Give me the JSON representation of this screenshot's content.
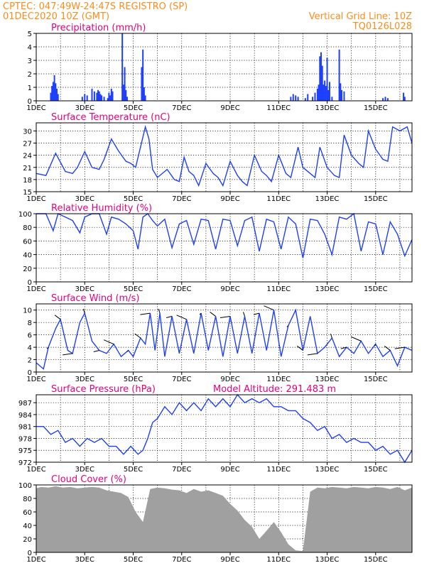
{
  "header": {
    "line1": "CPTEC:   047:49W-24:47S   REGISTRO (SP)",
    "line2": "01DEC2020 10Z (GMT)",
    "grid_note": "Vertical Grid Line: 10Z",
    "code": "TQ0126L028"
  },
  "colors": {
    "header": "#ff8c1a",
    "panel_title": "#e6007e",
    "series": "#1f3fff",
    "cloud": "#a0a0a0"
  },
  "chart_data": [
    {
      "type": "bar",
      "title": "Precipitation (mm/h)",
      "x_unit": "days from 01DEC 10Z",
      "xlim": [
        0,
        15.5
      ],
      "ylim": [
        0,
        5
      ],
      "yticks": [
        0,
        1,
        2,
        3,
        4,
        5
      ],
      "xticks": [
        "1DEC",
        "3DEC",
        "5DEC",
        "7DEC",
        "9DEC",
        "11DEC",
        "13DEC",
        "15DEC"
      ],
      "x": [
        0.6,
        0.65,
        0.7,
        0.75,
        0.8,
        0.85,
        0.9,
        1.9,
        2.0,
        2.1,
        2.3,
        2.4,
        2.5,
        2.55,
        2.6,
        2.65,
        2.7,
        2.8,
        2.95,
        3.0,
        3.05,
        3.1,
        3.15,
        3.55,
        3.6,
        3.65,
        3.7,
        3.75,
        4.35,
        4.4,
        4.45,
        4.5,
        10.5,
        10.6,
        10.7,
        10.8,
        11.1,
        11.2,
        11.4,
        11.5,
        11.6,
        11.65,
        11.7,
        11.75,
        11.8,
        11.85,
        11.9,
        11.95,
        12.0,
        12.05,
        12.1,
        12.2,
        12.5,
        12.55,
        12.6,
        12.7,
        14.3,
        14.4,
        14.5,
        15.15,
        15.2
      ],
      "values": [
        0.6,
        1.1,
        1.4,
        1.9,
        1.3,
        0.9,
        0.5,
        0.3,
        0.5,
        0.4,
        0.9,
        0.7,
        0.6,
        0.8,
        0.7,
        0.5,
        0.4,
        0.3,
        0.2,
        0.6,
        0.4,
        0.9,
        0.7,
        5.0,
        1.2,
        2.5,
        0.8,
        0.3,
        2.5,
        3.8,
        1.0,
        0.4,
        0.3,
        0.5,
        0.4,
        0.3,
        0.2,
        0.5,
        0.3,
        0.6,
        0.9,
        1.2,
        3.3,
        3.6,
        2.6,
        1.2,
        1.5,
        1.1,
        3.2,
        0.8,
        1.4,
        0.3,
        3.8,
        1.3,
        0.8,
        0.7,
        0.2,
        0.3,
        0.2,
        0.6,
        0.3
      ]
    },
    {
      "type": "line",
      "title": "Surface Temperature (nC)",
      "xlim": [
        0,
        15.5
      ],
      "ylim": [
        15,
        32
      ],
      "yticks": [
        15,
        18,
        21,
        24,
        27,
        30
      ],
      "xticks": [
        "1DEC",
        "3DEC",
        "5DEC",
        "7DEC",
        "9DEC",
        "11DEC",
        "13DEC",
        "15DEC"
      ],
      "x": [
        0,
        0.4,
        0.8,
        1.2,
        1.5,
        1.7,
        2.0,
        2.3,
        2.6,
        2.8,
        3.1,
        3.4,
        3.7,
        3.9,
        4.1,
        4.3,
        4.5,
        4.65,
        4.8,
        5.0,
        5.4,
        5.7,
        5.9,
        6.1,
        6.3,
        6.5,
        6.7,
        7.0,
        7.3,
        7.5,
        7.7,
        8.0,
        8.3,
        8.5,
        8.7,
        9.0,
        9.3,
        9.5,
        9.7,
        10.0,
        10.3,
        10.5,
        10.8,
        11.0,
        11.3,
        11.5,
        11.7,
        12.0,
        12.3,
        12.5,
        12.7,
        13.0,
        13.3,
        13.5,
        13.7,
        14.0,
        14.3,
        14.5,
        14.7,
        15.0,
        15.3,
        15.5
      ],
      "values": [
        19.5,
        19.0,
        24.5,
        20.0,
        19.5,
        21.0,
        24.9,
        21.0,
        20.5,
        23.0,
        28.0,
        25.0,
        22.5,
        22.0,
        21.0,
        26.0,
        31.0,
        28.0,
        20.5,
        18.5,
        20.5,
        18.0,
        17.5,
        23.5,
        20.0,
        19.0,
        16.5,
        22.0,
        19.5,
        18.5,
        16.5,
        22.5,
        19.0,
        17.5,
        16.5,
        24.0,
        20.0,
        19.0,
        17.5,
        24.0,
        19.5,
        18.5,
        26.0,
        21.0,
        19.5,
        18.5,
        26.0,
        21.0,
        19.0,
        18.5,
        29.0,
        24.0,
        22.0,
        21.0,
        30.0,
        25.5,
        23.0,
        22.5,
        31.0,
        30.0,
        31.0,
        27.0
      ]
    },
    {
      "type": "line",
      "title": "Relative Humidity (%)",
      "xlim": [
        0,
        15.5
      ],
      "ylim": [
        0,
        100
      ],
      "yticks": [
        0,
        20,
        40,
        60,
        80,
        100
      ],
      "xticks": [
        "1DEC",
        "3DEC",
        "5DEC",
        "7DEC",
        "9DEC",
        "11DEC",
        "13DEC",
        "15DEC"
      ],
      "x": [
        0,
        0.4,
        0.7,
        0.9,
        1.2,
        1.5,
        1.8,
        2.0,
        2.3,
        2.6,
        2.9,
        3.1,
        3.4,
        3.7,
        4.0,
        4.2,
        4.4,
        4.6,
        4.8,
        5.0,
        5.3,
        5.6,
        5.9,
        6.2,
        6.5,
        6.8,
        7.1,
        7.4,
        7.7,
        8.0,
        8.3,
        8.6,
        8.9,
        9.2,
        9.5,
        9.8,
        10.1,
        10.4,
        10.7,
        11.0,
        11.3,
        11.6,
        11.9,
        12.2,
        12.5,
        12.8,
        13.1,
        13.4,
        13.7,
        14.0,
        14.3,
        14.6,
        14.9,
        15.2,
        15.5
      ],
      "values": [
        100,
        100,
        75,
        100,
        95,
        90,
        72,
        95,
        100,
        100,
        70,
        95,
        92,
        85,
        75,
        48,
        95,
        100,
        90,
        82,
        92,
        50,
        85,
        90,
        55,
        92,
        90,
        48,
        92,
        90,
        53,
        90,
        95,
        45,
        92,
        88,
        48,
        95,
        85,
        35,
        92,
        90,
        70,
        40,
        95,
        92,
        100,
        45,
        88,
        85,
        40,
        88,
        70,
        38,
        62
      ]
    },
    {
      "type": "line",
      "title": "Surface Wind (m/s)",
      "xlim": [
        0,
        15.5
      ],
      "ylim": [
        0,
        11
      ],
      "yticks": [
        0,
        2,
        4,
        6,
        8,
        10
      ],
      "xticks": [
        "1DEC",
        "3DEC",
        "5DEC",
        "7DEC",
        "9DEC",
        "11DEC",
        "13DEC",
        "15DEC"
      ],
      "x": [
        0,
        0.3,
        0.5,
        0.8,
        1.0,
        1.3,
        1.5,
        1.8,
        2.0,
        2.3,
        2.6,
        2.9,
        3.2,
        3.5,
        3.8,
        4.0,
        4.3,
        4.5,
        4.7,
        4.9,
        5.1,
        5.3,
        5.6,
        5.9,
        6.2,
        6.5,
        6.8,
        7.1,
        7.4,
        7.7,
        8.0,
        8.3,
        8.6,
        8.9,
        9.2,
        9.5,
        9.8,
        10.1,
        10.4,
        10.7,
        11.0,
        11.3,
        11.6,
        11.9,
        12.2,
        12.5,
        12.8,
        13.1,
        13.4,
        13.7,
        14.0,
        14.3,
        14.6,
        14.9,
        15.2,
        15.5
      ],
      "values": [
        1.5,
        0.5,
        4.0,
        7.0,
        8.5,
        3.5,
        3.0,
        8.0,
        9.5,
        5.0,
        3.5,
        3.0,
        4.5,
        2.5,
        3.5,
        2.5,
        5.5,
        4.5,
        9.5,
        3.5,
        9.5,
        2.5,
        9.0,
        3.0,
        8.5,
        3.0,
        9.5,
        3.5,
        9.0,
        2.5,
        9.0,
        3.0,
        9.0,
        3.0,
        9.5,
        3.5,
        10.0,
        2.5,
        7.5,
        10.0,
        3.5,
        9.0,
        3.0,
        4.0,
        5.5,
        2.5,
        4.0,
        3.0,
        5.0,
        3.0,
        4.5,
        2.5,
        3.5,
        1.0,
        4.0,
        3.5
      ]
    },
    {
      "type": "line",
      "title": "Surface Pressure (hPa)",
      "annotation": "Model Altitude: 291.483 m",
      "xlim": [
        0,
        15.5
      ],
      "ylim": [
        972,
        989
      ],
      "yticks": [
        972,
        975,
        978,
        981,
        984,
        987
      ],
      "xticks": [
        "1DEC",
        "3DEC",
        "5DEC",
        "7DEC",
        "9DEC",
        "11DEC",
        "13DEC",
        "15DEC"
      ],
      "x": [
        0,
        0.3,
        0.6,
        0.9,
        1.2,
        1.5,
        1.8,
        2.1,
        2.4,
        2.7,
        3.0,
        3.3,
        3.6,
        3.9,
        4.2,
        4.4,
        4.6,
        4.8,
        5.0,
        5.3,
        5.6,
        5.9,
        6.2,
        6.5,
        6.8,
        7.1,
        7.4,
        7.7,
        8.0,
        8.3,
        8.6,
        8.9,
        9.2,
        9.5,
        9.8,
        10.1,
        10.4,
        10.7,
        11.0,
        11.3,
        11.6,
        11.9,
        12.2,
        12.5,
        12.8,
        13.1,
        13.4,
        13.7,
        14.0,
        14.3,
        14.6,
        14.9,
        15.2,
        15.5
      ],
      "values": [
        981,
        981,
        979,
        980,
        977,
        978,
        976,
        978,
        977,
        978,
        976,
        976,
        974,
        976,
        974,
        975,
        978,
        982,
        983,
        986,
        984,
        987,
        985,
        987,
        985,
        988,
        986,
        988,
        986,
        989,
        987,
        988,
        987,
        988,
        986,
        986,
        985,
        985,
        983,
        982,
        980,
        981,
        978,
        979,
        977,
        978,
        977,
        977,
        975,
        976,
        974,
        975,
        972,
        975
      ]
    },
    {
      "type": "area",
      "title": "Cloud Cover (%)",
      "xlim": [
        0,
        15.5
      ],
      "ylim": [
        0,
        100
      ],
      "yticks": [
        0,
        20,
        40,
        60,
        80,
        100
      ],
      "xticks": [
        "1DEC",
        "3DEC",
        "5DEC",
        "7DEC",
        "9DEC",
        "11DEC",
        "13DEC",
        "15DEC"
      ],
      "x": [
        0,
        0.2,
        0.5,
        0.8,
        1.1,
        1.4,
        1.7,
        2.0,
        2.3,
        2.6,
        2.9,
        3.2,
        3.5,
        3.8,
        4.1,
        4.4,
        4.7,
        5.0,
        5.3,
        5.6,
        5.9,
        6.2,
        6.5,
        6.8,
        7.1,
        7.4,
        7.7,
        8.0,
        8.3,
        8.6,
        8.9,
        9.2,
        9.5,
        9.8,
        10.1,
        10.4,
        10.7,
        11.0,
        11.3,
        11.6,
        11.9,
        12.2,
        12.5,
        12.8,
        13.1,
        13.4,
        13.7,
        14.0,
        14.3,
        14.6,
        14.9,
        15.2,
        15.5
      ],
      "values": [
        95,
        97,
        96,
        98,
        96,
        97,
        95,
        96,
        97,
        96,
        92,
        90,
        88,
        82,
        60,
        45,
        94,
        96,
        95,
        93,
        92,
        88,
        94,
        90,
        92,
        88,
        84,
        72,
        62,
        48,
        38,
        20,
        32,
        45,
        30,
        12,
        3,
        2,
        90,
        96,
        95,
        97,
        96,
        95,
        97,
        96,
        95,
        97,
        96,
        94,
        97,
        92,
        96
      ]
    }
  ]
}
